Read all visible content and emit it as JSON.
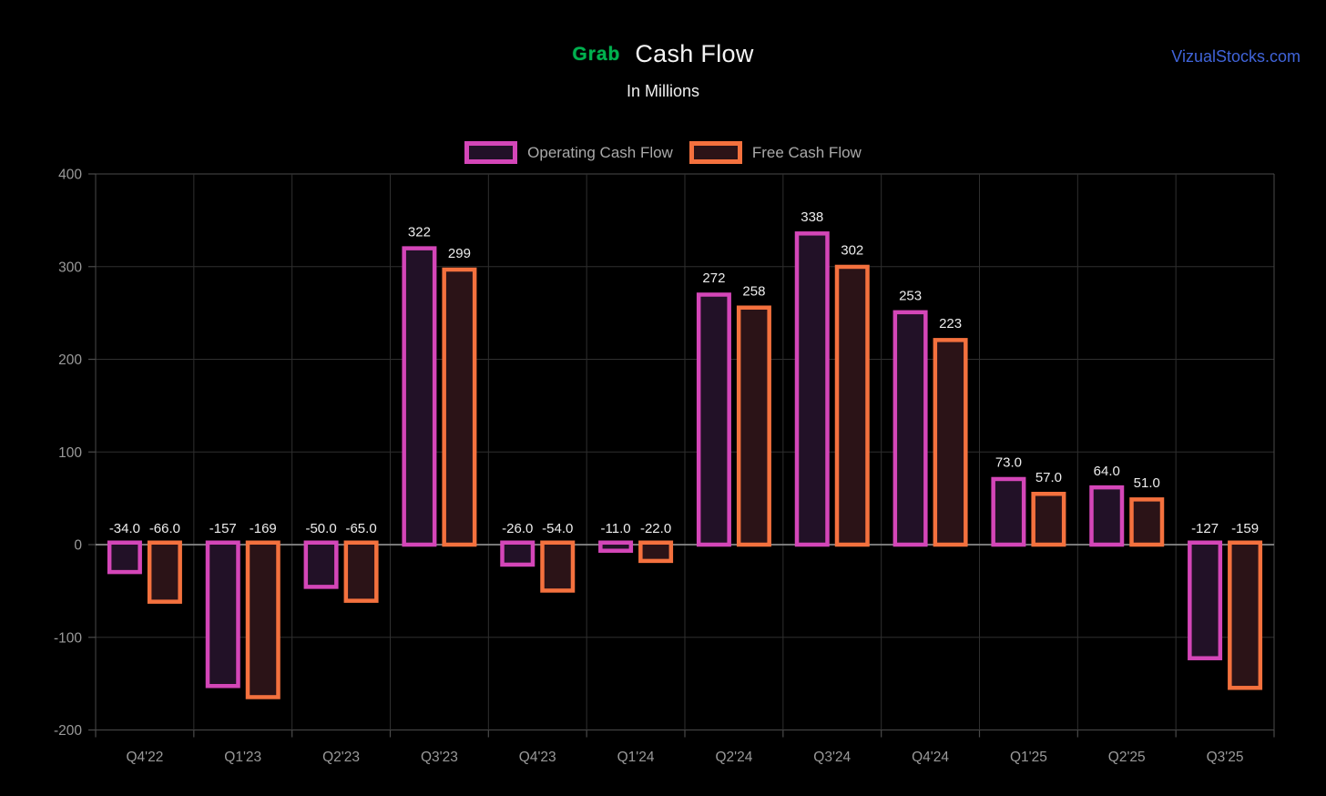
{
  "header": {
    "brand": "Grab",
    "brand_color": "#00b14f",
    "title": "Cash Flow",
    "subtitle": "In Millions",
    "watermark": "VizualStocks.com",
    "watermark_color": "#4064d9"
  },
  "chart_data": {
    "type": "bar",
    "title": "Cash Flow",
    "subtitle": "In Millions",
    "categories": [
      "Q4'22",
      "Q1'23",
      "Q2'23",
      "Q3'23",
      "Q4'23",
      "Q1'24",
      "Q2'24",
      "Q3'24",
      "Q4'24",
      "Q1'25",
      "Q2'25",
      "Q3'25"
    ],
    "series": [
      {
        "name": "Operating Cash Flow",
        "stroke": "#d446b8",
        "fill": "#221127",
        "values": [
          -34,
          -157,
          -50,
          322,
          -26,
          -11,
          272,
          338,
          253,
          73,
          64,
          -127
        ],
        "labels": [
          "-34.0",
          "-157",
          "-50.0",
          "322",
          "-26.0",
          "-11.0",
          "272",
          "338",
          "253",
          "73.0",
          "64.0",
          "-127"
        ]
      },
      {
        "name": "Free Cash Flow",
        "stroke": "#f4713e",
        "fill": "#2b1317",
        "values": [
          -66,
          -169,
          -65,
          299,
          -54,
          -22,
          258,
          302,
          223,
          57,
          51,
          -159
        ],
        "labels": [
          "-66.0",
          "-169",
          "-65.0",
          "299",
          "-54.0",
          "-22.0",
          "258",
          "302",
          "223",
          "57.0",
          "51.0",
          "-159"
        ]
      }
    ],
    "ylim": [
      -200,
      400
    ],
    "yticks": [
      400,
      300,
      200,
      100,
      0,
      -100,
      -200
    ],
    "grid": true,
    "legend_position": "top-center",
    "colors": {
      "background": "#000000",
      "grid": "#2f2f2f",
      "spine": "#4a4a4a",
      "zero_line": "#8a8a8a",
      "tick_label": "#9a9a9a",
      "value_label": "#ececec"
    }
  }
}
